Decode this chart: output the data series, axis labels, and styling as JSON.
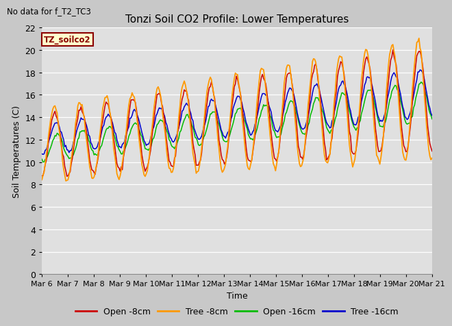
{
  "title": "Tonzi Soil CO2 Profile: Lower Temperatures",
  "subtitle": "No data for f_T2_TC3",
  "xlabel": "Time",
  "ylabel": "Soil Temperatures (C)",
  "legend_label": "TZ_soilco2",
  "ylim": [
    0,
    22
  ],
  "yticks": [
    0,
    2,
    4,
    6,
    8,
    10,
    12,
    14,
    16,
    18,
    20,
    22
  ],
  "plot_bg_color": "#e0e0e0",
  "fig_bg_color": "#c8c8c8",
  "grid_color": "#ffffff",
  "colors": {
    "open8": "#cc0000",
    "tree8": "#ff9900",
    "open16": "#00bb00",
    "tree16": "#0000cc"
  },
  "legend_entries": [
    "Open -8cm",
    "Tree -8cm",
    "Open -16cm",
    "Tree -16cm"
  ],
  "x_tick_labels": [
    "Mar 6",
    "Mar 7",
    "Mar 8",
    "Mar 9",
    "Mar 10",
    "Mar 11",
    "Mar 12",
    "Mar 13",
    "Mar 14",
    "Mar 15",
    "Mar 16",
    "Mar 17",
    "Mar 18",
    "Mar 19",
    "Mar 20",
    "Mar 21"
  ],
  "days": 15,
  "n_points": 360
}
